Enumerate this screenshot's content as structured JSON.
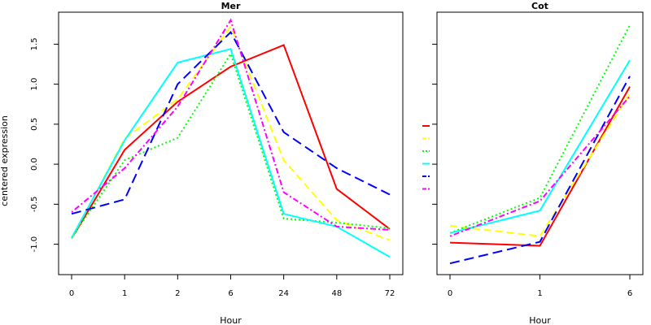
{
  "ylabel": "centered expression",
  "chart_data": [
    {
      "type": "line",
      "title": "Mer",
      "xlabel": "Hour",
      "categories": [
        "0",
        "1",
        "2",
        "6",
        "24",
        "48",
        "72"
      ],
      "yticks": [
        "-1.0",
        "-0.5",
        "0.0",
        "0.5",
        "1.0",
        "1.5"
      ],
      "ylim": [
        -1.38,
        1.9
      ],
      "series": [
        {
          "color": "#ff0000",
          "dash": "solid",
          "values": [
            -0.93,
            0.18,
            0.78,
            1.22,
            1.49,
            -0.31,
            -0.81
          ]
        },
        {
          "color": "#ffff00",
          "dash": "dashed",
          "values": [
            -0.93,
            0.32,
            0.81,
            1.72,
            0.05,
            -0.7,
            -0.95
          ]
        },
        {
          "color": "#00ff00",
          "dash": "dotted",
          "values": [
            -0.92,
            0.05,
            0.33,
            1.38,
            -0.68,
            -0.73,
            -0.8
          ]
        },
        {
          "color": "#00ffff",
          "dash": "solid",
          "values": [
            -0.92,
            0.3,
            1.27,
            1.44,
            -0.62,
            -0.78,
            -1.16
          ]
        },
        {
          "color": "#0000ff",
          "dash": "longdash",
          "values": [
            -0.62,
            -0.44,
            1.0,
            1.65,
            0.4,
            -0.05,
            -0.38
          ]
        },
        {
          "color": "#ff00ff",
          "dash": "dotdash",
          "values": [
            -0.6,
            -0.05,
            0.72,
            1.8,
            -0.35,
            -0.78,
            -0.82
          ]
        }
      ]
    },
    {
      "type": "line",
      "title": "Cot",
      "xlabel": "Hour",
      "categories": [
        "0",
        "1",
        "6"
      ],
      "yticks": [
        "-1.0",
        "-0.5",
        "0.0",
        "0.5",
        "1.0",
        "1.5"
      ],
      "ylim": [
        -1.38,
        1.9
      ],
      "series": [
        {
          "color": "#ff0000",
          "dash": "solid",
          "values": [
            -0.98,
            -1.02,
            0.97
          ]
        },
        {
          "color": "#ffff00",
          "dash": "dashed",
          "values": [
            -0.77,
            -0.9,
            0.88
          ]
        },
        {
          "color": "#00ff00",
          "dash": "dotted",
          "values": [
            -0.86,
            -0.42,
            1.74
          ]
        },
        {
          "color": "#00ffff",
          "dash": "solid",
          "values": [
            -0.86,
            -0.58,
            1.3
          ]
        },
        {
          "color": "#0000ff",
          "dash": "longdash",
          "values": [
            -1.24,
            -0.97,
            1.1
          ]
        },
        {
          "color": "#ff00ff",
          "dash": "dotdash",
          "values": [
            -0.9,
            -0.46,
            0.85
          ]
        }
      ]
    }
  ],
  "legend": [
    {
      "color": "#ff0000",
      "dash": "solid"
    },
    {
      "color": "#ffff00",
      "dash": "dashed"
    },
    {
      "color": "#00ff00",
      "dash": "dotted"
    },
    {
      "color": "#00ffff",
      "dash": "solid"
    },
    {
      "color": "#0000ff",
      "dash": "longdash"
    },
    {
      "color": "#ff00ff",
      "dash": "dotdash"
    }
  ]
}
